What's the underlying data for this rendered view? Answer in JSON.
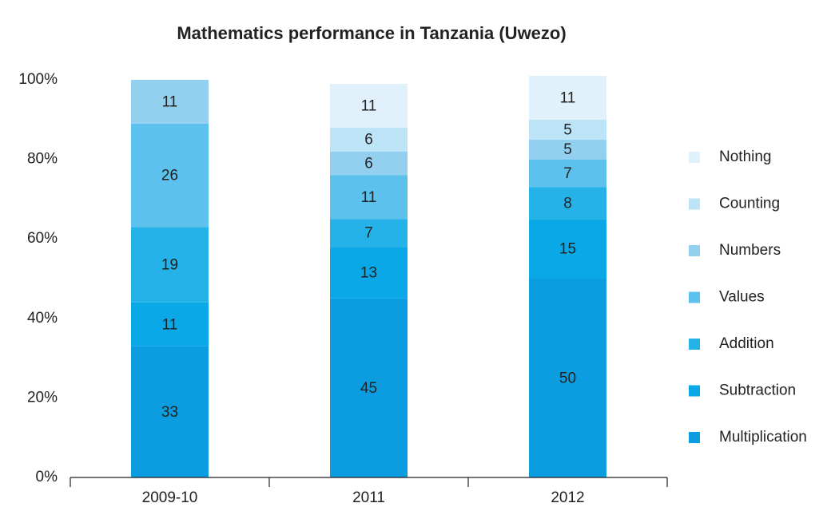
{
  "chart_data": {
    "type": "stacked_bar",
    "title": "Mathematics performance in Tanzania (Uwezo)",
    "categories": [
      "2009-10",
      "2011",
      "2012"
    ],
    "series": [
      {
        "name": "Multiplication",
        "color": "#0b9ddf",
        "values": [
          33,
          45,
          50
        ]
      },
      {
        "name": "Subtraction",
        "color": "#0aa8e6",
        "values": [
          11,
          13,
          15
        ]
      },
      {
        "name": "Addition",
        "color": "#25b2e9",
        "values": [
          19,
          7,
          8
        ]
      },
      {
        "name": "Values",
        "color": "#5cc1ec",
        "values": [
          26,
          11,
          7
        ]
      },
      {
        "name": "Numbers",
        "color": "#93d0f0",
        "values": [
          11,
          6,
          5
        ]
      },
      {
        "name": "Counting",
        "color": "#bde3f7",
        "values": [
          null,
          6,
          5
        ]
      },
      {
        "name": "Nothing",
        "color": "#e0f1fb",
        "values": [
          null,
          11,
          11
        ]
      }
    ],
    "ylim": [
      0,
      100
    ],
    "yticks": [
      {
        "value": 0,
        "label": "0%"
      },
      {
        "value": 20,
        "label": "20%"
      },
      {
        "value": 40,
        "label": "40%"
      },
      {
        "value": 60,
        "label": "60%"
      },
      {
        "value": 80,
        "label": "80%"
      },
      {
        "value": 100,
        "label": "100%"
      }
    ]
  }
}
